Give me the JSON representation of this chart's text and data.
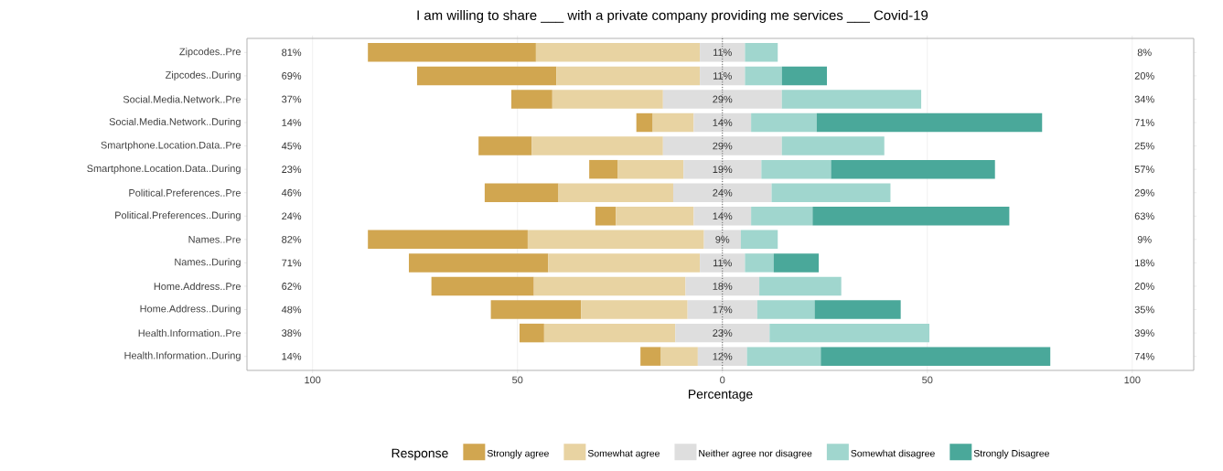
{
  "chart_data": {
    "type": "bar",
    "orientation": "horizontal",
    "title": "I am willing to share ___ with a private company providing me services  ___ Covid-19",
    "xlabel": "Percentage",
    "legend_title": "Response",
    "legend": "bottom",
    "grid": "x",
    "categories": [
      "Zipcodes..Pre",
      "Zipcodes..During",
      "Social.Media.Network..Pre",
      "Social.Media.Network..During",
      "Smartphone.Location.Data..Pre",
      "Smartphone.Location.Data..During",
      "Political.Preferences..Pre",
      "Political.Preferences..During",
      "Names..Pre",
      "Names..During",
      "Home.Address..Pre",
      "Home.Address..During",
      "Health.Information..Pre",
      "Health.Information..During"
    ],
    "xlim": [
      -116,
      115
    ],
    "xticks": [
      {
        "value": -100,
        "label": "100"
      },
      {
        "value": -50,
        "label": "50"
      },
      0,
      50,
      100
    ],
    "series": [
      {
        "name": "Strongly agree",
        "color": "#d1a650",
        "values": [
          41,
          34,
          10,
          4,
          13,
          7,
          18,
          5,
          39,
          34,
          25,
          22,
          6,
          5
        ],
        "base": [
          -86.5,
          -74.5,
          -51.5,
          -21,
          -59.5,
          -32.5,
          -58,
          -31,
          -86.5,
          -76.5,
          -71,
          -56.5,
          -49.5,
          -20
        ]
      },
      {
        "name": "Somewhat agree",
        "color": "#e8d3a2",
        "values": [
          40,
          35,
          27,
          10,
          32,
          16,
          28,
          19,
          43,
          37,
          37,
          26,
          32,
          9
        ],
        "base": [
          -45.5,
          -40.5,
          -41.5,
          -17,
          -46.5,
          -25.5,
          -40,
          -26,
          -47.5,
          -42.5,
          -46,
          -34.5,
          -43.5,
          -15
        ]
      },
      {
        "name": "Neither agree nor disagree",
        "color": "#dedede",
        "values": [
          11,
          11,
          29,
          14,
          29,
          19,
          24,
          14,
          9,
          11,
          18,
          17,
          23,
          12
        ],
        "base": [
          -5.5,
          -5.5,
          -14.5,
          -7,
          -14.5,
          -9.5,
          -12,
          -7,
          -4.5,
          -5.5,
          -9,
          -8.5,
          -11.5,
          -6
        ],
        "value_labels": [
          "11%",
          "11%",
          "29%",
          "14%",
          "29%",
          "19%",
          "24%",
          "14%",
          "9%",
          "11%",
          "18%",
          "17%",
          "23%",
          "12%"
        ]
      },
      {
        "name": "Somewhat disagree",
        "color": "#a0d6ce",
        "values": [
          8,
          9,
          34,
          16,
          25,
          17,
          29,
          15,
          9,
          7,
          20,
          14,
          39,
          18
        ],
        "base": [
          5.5,
          5.5,
          14.5,
          7,
          14.5,
          9.5,
          12,
          7,
          4.5,
          5.5,
          9,
          8.5,
          11.5,
          6
        ]
      },
      {
        "name": "Strongly Disagree",
        "color": "#4aa89a",
        "values": [
          null,
          11,
          null,
          55,
          null,
          40,
          null,
          48,
          null,
          11,
          null,
          21,
          null,
          56
        ],
        "base": [
          null,
          14.5,
          null,
          23,
          null,
          26.5,
          null,
          22,
          null,
          12.5,
          null,
          22.5,
          null,
          24
        ]
      }
    ],
    "ref_lines": [
      {
        "axis": "x",
        "value": 0,
        "line_style": "dotted",
        "color": "#000000"
      }
    ],
    "annotations": [
      "81%",
      "69%",
      "37%",
      "14%",
      "45%",
      "23%",
      "46%",
      "24%",
      "82%",
      "71%",
      "62%",
      "48%",
      "38%",
      "14%",
      "8%",
      "20%",
      "34%",
      "71%",
      "25%",
      "57%",
      "29%",
      "63%",
      "9%",
      "18%",
      "20%",
      "35%",
      "39%",
      "74%"
    ]
  }
}
